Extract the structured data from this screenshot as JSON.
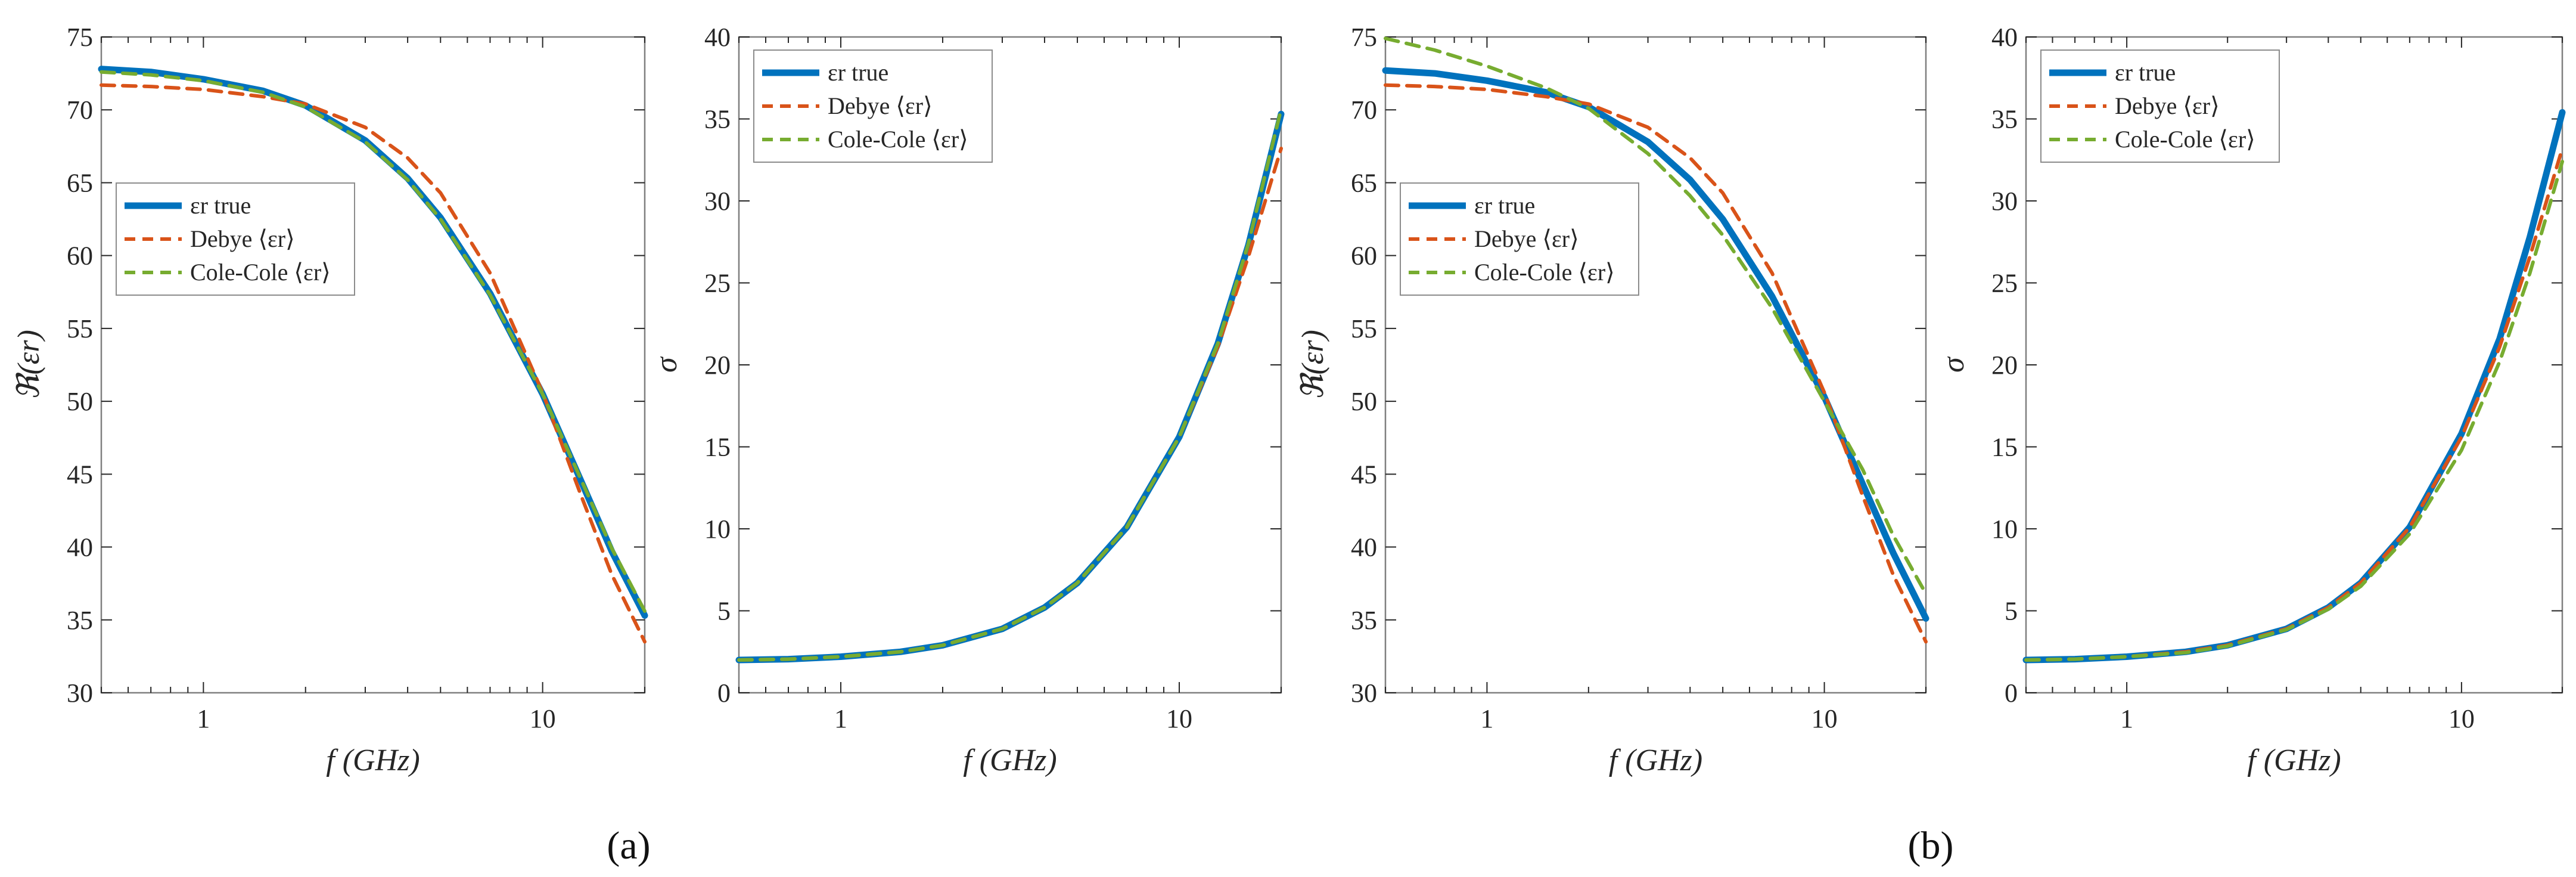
{
  "colors": {
    "true": "#0072BD",
    "debye": "#D95319",
    "colecole": "#77AC30",
    "axis": "#262626",
    "box": "#7f7f7f"
  },
  "panel_labels": [
    "(a)",
    "(b)"
  ],
  "chart_data": [
    {
      "type": "line",
      "panel": "(a)",
      "quantity": "real",
      "xlabel": "f (GHz)",
      "ylabel": "ℜ(εr)",
      "xscale": "log",
      "xlim": [
        0.5,
        20
      ],
      "ylim": [
        30,
        75
      ],
      "xticks": [
        1,
        10
      ],
      "xtick_labels": [
        "1",
        "10"
      ],
      "yticks": [
        30,
        35,
        40,
        45,
        50,
        55,
        60,
        65,
        70,
        75
      ],
      "ytick_labels": [
        "30",
        "35",
        "40",
        "45",
        "50",
        "55",
        "60",
        "65",
        "70",
        "75"
      ],
      "legend": {
        "position": "center-left",
        "entries": [
          "εr true",
          "Debye ⟨εr⟩",
          "Cole-Cole ⟨εr⟩"
        ]
      },
      "x": [
        0.5,
        0.7,
        1,
        1.5,
        2,
        3,
        4,
        5,
        7,
        10,
        13,
        16,
        20
      ],
      "series": [
        {
          "name": "εr true",
          "style": "solid",
          "values": [
            72.8,
            72.6,
            72.1,
            71.3,
            70.3,
            67.9,
            65.3,
            62.6,
            57.4,
            50.5,
            44.5,
            39.7,
            35.3
          ]
        },
        {
          "name": "Debye ⟨εr⟩",
          "style": "dashed",
          "values": [
            71.7,
            71.6,
            71.4,
            70.9,
            70.4,
            68.8,
            66.7,
            64.3,
            58.8,
            50.6,
            43.5,
            38.1,
            33.5
          ]
        },
        {
          "name": "Cole-Cole ⟨εr⟩",
          "style": "dashed",
          "values": [
            72.6,
            72.4,
            72.0,
            71.2,
            70.2,
            67.8,
            65.2,
            62.5,
            57.3,
            50.5,
            44.6,
            39.9,
            35.6
          ]
        }
      ]
    },
    {
      "type": "line",
      "panel": "(a)",
      "quantity": "conductivity",
      "xlabel": "f (GHz)",
      "ylabel": "σ",
      "xscale": "log",
      "xlim": [
        0.5,
        20
      ],
      "ylim": [
        0,
        40
      ],
      "xticks": [
        1,
        10
      ],
      "xtick_labels": [
        "1",
        "10"
      ],
      "yticks": [
        0,
        5,
        10,
        15,
        20,
        25,
        30,
        35,
        40
      ],
      "ytick_labels": [
        "0",
        "5",
        "10",
        "15",
        "20",
        "25",
        "30",
        "35",
        "40"
      ],
      "legend": {
        "position": "top-left",
        "entries": [
          "εr true",
          "Debye ⟨εr⟩",
          "Cole-Cole ⟨εr⟩"
        ]
      },
      "x": [
        0.5,
        0.7,
        1,
        1.5,
        2,
        3,
        4,
        5,
        7,
        10,
        13,
        16,
        20
      ],
      "series": [
        {
          "name": "εr true",
          "style": "solid",
          "values": [
            2.0,
            2.05,
            2.2,
            2.5,
            2.9,
            3.9,
            5.2,
            6.7,
            10.1,
            15.6,
            21.3,
            27.3,
            35.3
          ]
        },
        {
          "name": "Debye ⟨εr⟩",
          "style": "dashed",
          "values": [
            2.0,
            2.05,
            2.2,
            2.5,
            2.9,
            3.9,
            5.2,
            6.7,
            10.1,
            15.6,
            21.1,
            26.6,
            33.2
          ]
        },
        {
          "name": "Cole-Cole ⟨εr⟩",
          "style": "dashed",
          "values": [
            2.0,
            2.05,
            2.2,
            2.5,
            2.9,
            3.9,
            5.2,
            6.7,
            10.1,
            15.6,
            21.3,
            27.4,
            35.6
          ]
        }
      ]
    },
    {
      "type": "line",
      "panel": "(b)",
      "quantity": "real",
      "xlabel": "f (GHz)",
      "ylabel": "ℜ(εr)",
      "xscale": "log",
      "xlim": [
        0.5,
        20
      ],
      "ylim": [
        30,
        75
      ],
      "xticks": [
        1,
        10
      ],
      "xtick_labels": [
        "1",
        "10"
      ],
      "yticks": [
        30,
        35,
        40,
        45,
        50,
        55,
        60,
        65,
        70,
        75
      ],
      "ytick_labels": [
        "30",
        "35",
        "40",
        "45",
        "50",
        "55",
        "60",
        "65",
        "70",
        "75"
      ],
      "legend": {
        "position": "center-left",
        "entries": [
          "εr true",
          "Debye ⟨εr⟩",
          "Cole-Cole ⟨εr⟩"
        ]
      },
      "x": [
        0.5,
        0.7,
        1,
        1.5,
        2,
        3,
        4,
        5,
        7,
        10,
        13,
        16,
        20
      ],
      "series": [
        {
          "name": "εr true",
          "style": "solid",
          "values": [
            72.7,
            72.5,
            72.0,
            71.2,
            70.2,
            67.8,
            65.2,
            62.5,
            57.2,
            50.3,
            44.3,
            39.6,
            35.1
          ]
        },
        {
          "name": "Debye ⟨εr⟩",
          "style": "dashed",
          "values": [
            71.7,
            71.6,
            71.4,
            70.9,
            70.4,
            68.8,
            66.7,
            64.3,
            58.8,
            50.6,
            43.5,
            38.1,
            33.5
          ]
        },
        {
          "name": "Cole-Cole ⟨εr⟩",
          "style": "dashed",
          "values": [
            74.9,
            74.1,
            73.0,
            71.5,
            70.1,
            67.0,
            64.1,
            61.4,
            56.4,
            50.0,
            45.3,
            40.8,
            36.8
          ]
        }
      ]
    },
    {
      "type": "line",
      "panel": "(b)",
      "quantity": "conductivity",
      "xlabel": "f (GHz)",
      "ylabel": "σ",
      "xscale": "log",
      "xlim": [
        0.5,
        20
      ],
      "ylim": [
        0,
        40
      ],
      "xticks": [
        1,
        10
      ],
      "xtick_labels": [
        "1",
        "10"
      ],
      "yticks": [
        0,
        5,
        10,
        15,
        20,
        25,
        30,
        35,
        40
      ],
      "ytick_labels": [
        "0",
        "5",
        "10",
        "15",
        "20",
        "25",
        "30",
        "35",
        "40"
      ],
      "legend": {
        "position": "top-left",
        "entries": [
          "εr true",
          "Debye ⟨εr⟩",
          "Cole-Cole ⟨εr⟩"
        ]
      },
      "x": [
        0.5,
        0.7,
        1,
        1.5,
        2,
        3,
        4,
        5,
        7,
        10,
        13,
        16,
        20
      ],
      "series": [
        {
          "name": "εr true",
          "style": "solid",
          "values": [
            2.0,
            2.05,
            2.2,
            2.5,
            2.9,
            3.9,
            5.2,
            6.7,
            10.1,
            15.8,
            21.6,
            27.8,
            35.4
          ]
        },
        {
          "name": "Debye ⟨εr⟩",
          "style": "dashed",
          "values": [
            2.0,
            2.05,
            2.2,
            2.5,
            2.9,
            3.9,
            5.2,
            6.7,
            10.1,
            15.6,
            21.1,
            26.6,
            33.2
          ]
        },
        {
          "name": "Cole-Cole ⟨εr⟩",
          "style": "dashed",
          "values": [
            2.0,
            2.05,
            2.2,
            2.45,
            2.85,
            3.85,
            5.1,
            6.5,
            9.7,
            14.8,
            20.2,
            25.6,
            32.4
          ]
        }
      ]
    }
  ]
}
